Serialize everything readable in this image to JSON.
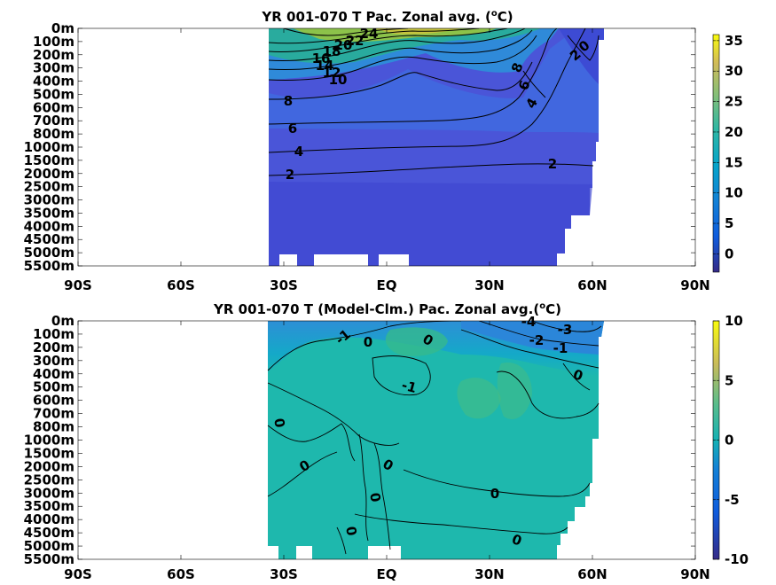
{
  "chart_data": [
    {
      "type": "heatmap",
      "subtype": "zonal-average depth-latitude contour",
      "title_parts": [
        "YR 001-070 T Pac. Zonal avg. (",
        "o",
        "C)"
      ],
      "x_ticks": [
        "90S",
        "60S",
        "30S",
        "EQ",
        "30N",
        "60N",
        "90N"
      ],
      "x_tick_values": [
        -90,
        -60,
        -30,
        0,
        30,
        60,
        90
      ],
      "xlim": [
        -90,
        90
      ],
      "y_ticks": [
        "0m",
        "100m",
        "200m",
        "300m",
        "400m",
        "500m",
        "600m",
        "700m",
        "800m",
        "1000m",
        "1500m",
        "2000m",
        "2500m",
        "3000m",
        "3500m",
        "4000m",
        "4500m",
        "5000m",
        "5500m"
      ],
      "y_axis_reversed": true,
      "colorbar": {
        "ticks": [
          "35",
          "30",
          "25",
          "20",
          "15",
          "10",
          "5",
          "0"
        ],
        "tick_values": [
          35,
          30,
          25,
          20,
          15,
          10,
          5,
          0
        ],
        "range": [
          -3,
          36
        ],
        "colormap": "parula"
      },
      "data_extent_lat": [
        -34,
        62
      ],
      "contour_labels": [
        "24",
        "22",
        "20",
        "18",
        "16",
        "14",
        "12",
        "10",
        "8",
        "6",
        "4",
        "2",
        "2",
        "8",
        "6",
        "4",
        "2",
        "0"
      ],
      "fields": {
        "surface_max_temp_C": 28,
        "surface_eq_temp_C": 27,
        "deep_temp_C": 1.5
      },
      "colors": {
        "warm": "#95c33c",
        "cold": "#4a55d8",
        "coldest": "#3a2fb0"
      }
    },
    {
      "type": "heatmap",
      "subtype": "zonal-average depth-latitude contour (anomaly)",
      "title_parts": [
        "YR 001-070 T (Model-Clm.) Pac. Zonal avg.(",
        "o",
        "C)"
      ],
      "x_ticks": [
        "90S",
        "60S",
        "30S",
        "EQ",
        "30N",
        "60N",
        "90N"
      ],
      "x_tick_values": [
        -90,
        -60,
        -30,
        0,
        30,
        60,
        90
      ],
      "xlim": [
        -90,
        90
      ],
      "y_ticks": [
        "0m",
        "100m",
        "200m",
        "300m",
        "400m",
        "500m",
        "600m",
        "700m",
        "800m",
        "1000m",
        "1500m",
        "2000m",
        "2500m",
        "3000m",
        "3500m",
        "4000m",
        "4500m",
        "5000m",
        "5500m"
      ],
      "y_axis_reversed": true,
      "colorbar": {
        "ticks": [
          "10",
          "5",
          "0",
          "-5",
          "-10"
        ],
        "tick_values": [
          10,
          5,
          0,
          -5,
          -10
        ],
        "range": [
          -10,
          10
        ],
        "colormap": "parula"
      },
      "data_extent_lat": [
        -34,
        62
      ],
      "contour_labels": [
        "-4",
        "-3",
        "-2",
        "-1",
        "-1",
        "-1",
        "0",
        "0",
        "0",
        "0",
        "0",
        "0",
        "0",
        "0",
        "0",
        "0"
      ],
      "fields": {
        "min_anomaly_C": -4.5,
        "max_anomaly_C": 2.5,
        "deep_anomaly_C": 0
      },
      "colors": {
        "zero": "#1eb8ad",
        "negative": "#2d8fd6",
        "positive": "#5cc080"
      }
    }
  ]
}
